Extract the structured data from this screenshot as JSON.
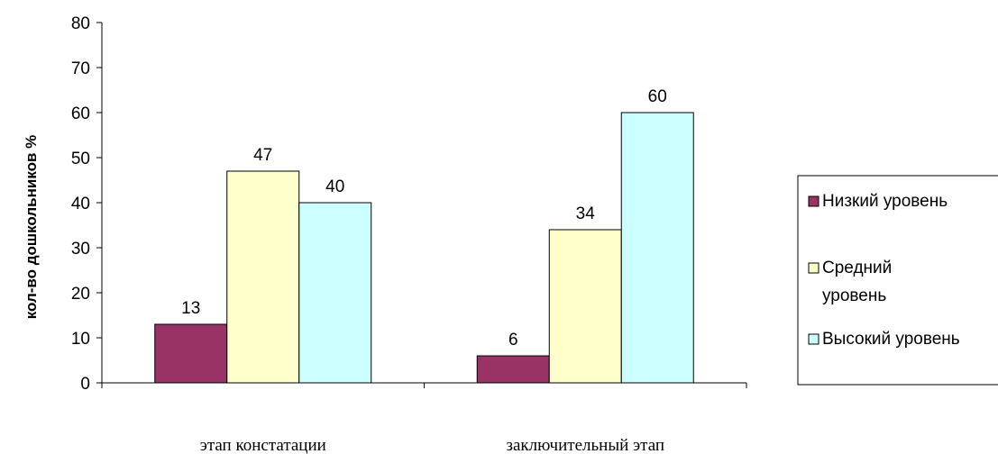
{
  "chart_data": {
    "type": "bar",
    "categories": [
      "этап констатации",
      "заключительный этап"
    ],
    "series": [
      {
        "name": "Низкий уровень",
        "values": [
          13,
          6
        ],
        "color": "#993366"
      },
      {
        "name": "Средний уровень",
        "legend_lines": [
          "Средний",
          "уровень"
        ],
        "values": [
          47,
          34
        ],
        "color": "#FFFFCC"
      },
      {
        "name": "Высокий уровень",
        "values": [
          40,
          60
        ],
        "color": "#CCFFFF"
      }
    ],
    "ylabel": "кол-во дошкольников %",
    "xlabel": "",
    "ylim": [
      0,
      80
    ],
    "yticks": [
      0,
      10,
      20,
      30,
      40,
      50,
      60,
      70,
      80
    ],
    "grid": false,
    "legend_position": "right",
    "show_data_labels": true
  }
}
